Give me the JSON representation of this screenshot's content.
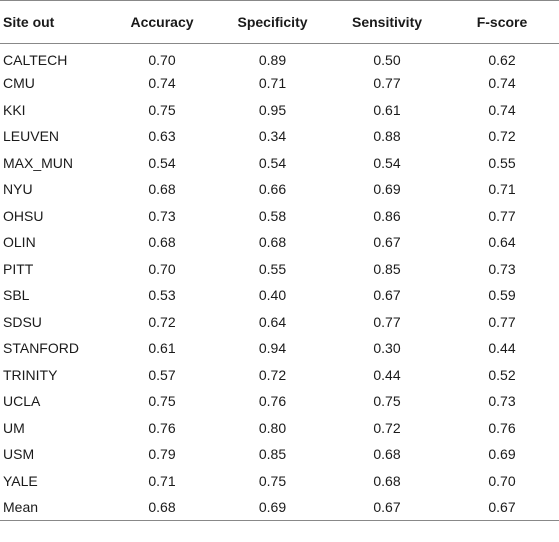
{
  "table": {
    "headers": [
      "Site out",
      "Accuracy",
      "Specificity",
      "Sensitivity",
      "F-score"
    ],
    "rows": [
      [
        "CALTECH",
        "0.70",
        "0.89",
        "0.50",
        "0.62"
      ],
      [
        "CMU",
        "0.74",
        "0.71",
        "0.77",
        "0.74"
      ],
      [
        "KKI",
        "0.75",
        "0.95",
        "0.61",
        "0.74"
      ],
      [
        "LEUVEN",
        "0.63",
        "0.34",
        "0.88",
        "0.72"
      ],
      [
        "MAX_MUN",
        "0.54",
        "0.54",
        "0.54",
        "0.55"
      ],
      [
        "NYU",
        "0.68",
        "0.66",
        "0.69",
        "0.71"
      ],
      [
        "OHSU",
        "0.73",
        "0.58",
        "0.86",
        "0.77"
      ],
      [
        "OLIN",
        "0.68",
        "0.68",
        "0.67",
        "0.64"
      ],
      [
        "PITT",
        "0.70",
        "0.55",
        "0.85",
        "0.73"
      ],
      [
        "SBL",
        "0.53",
        "0.40",
        "0.67",
        "0.59"
      ],
      [
        "SDSU",
        "0.72",
        "0.64",
        "0.77",
        "0.77"
      ],
      [
        "STANFORD",
        "0.61",
        "0.94",
        "0.30",
        "0.44"
      ],
      [
        "TRINITY",
        "0.57",
        "0.72",
        "0.44",
        "0.52"
      ],
      [
        "UCLA",
        "0.75",
        "0.76",
        "0.75",
        "0.73"
      ],
      [
        "UM",
        "0.76",
        "0.80",
        "0.72",
        "0.76"
      ],
      [
        "USM",
        "0.79",
        "0.85",
        "0.68",
        "0.69"
      ],
      [
        "YALE",
        "0.71",
        "0.75",
        "0.68",
        "0.70"
      ],
      [
        "Mean",
        "0.68",
        "0.69",
        "0.67",
        "0.67"
      ]
    ]
  }
}
